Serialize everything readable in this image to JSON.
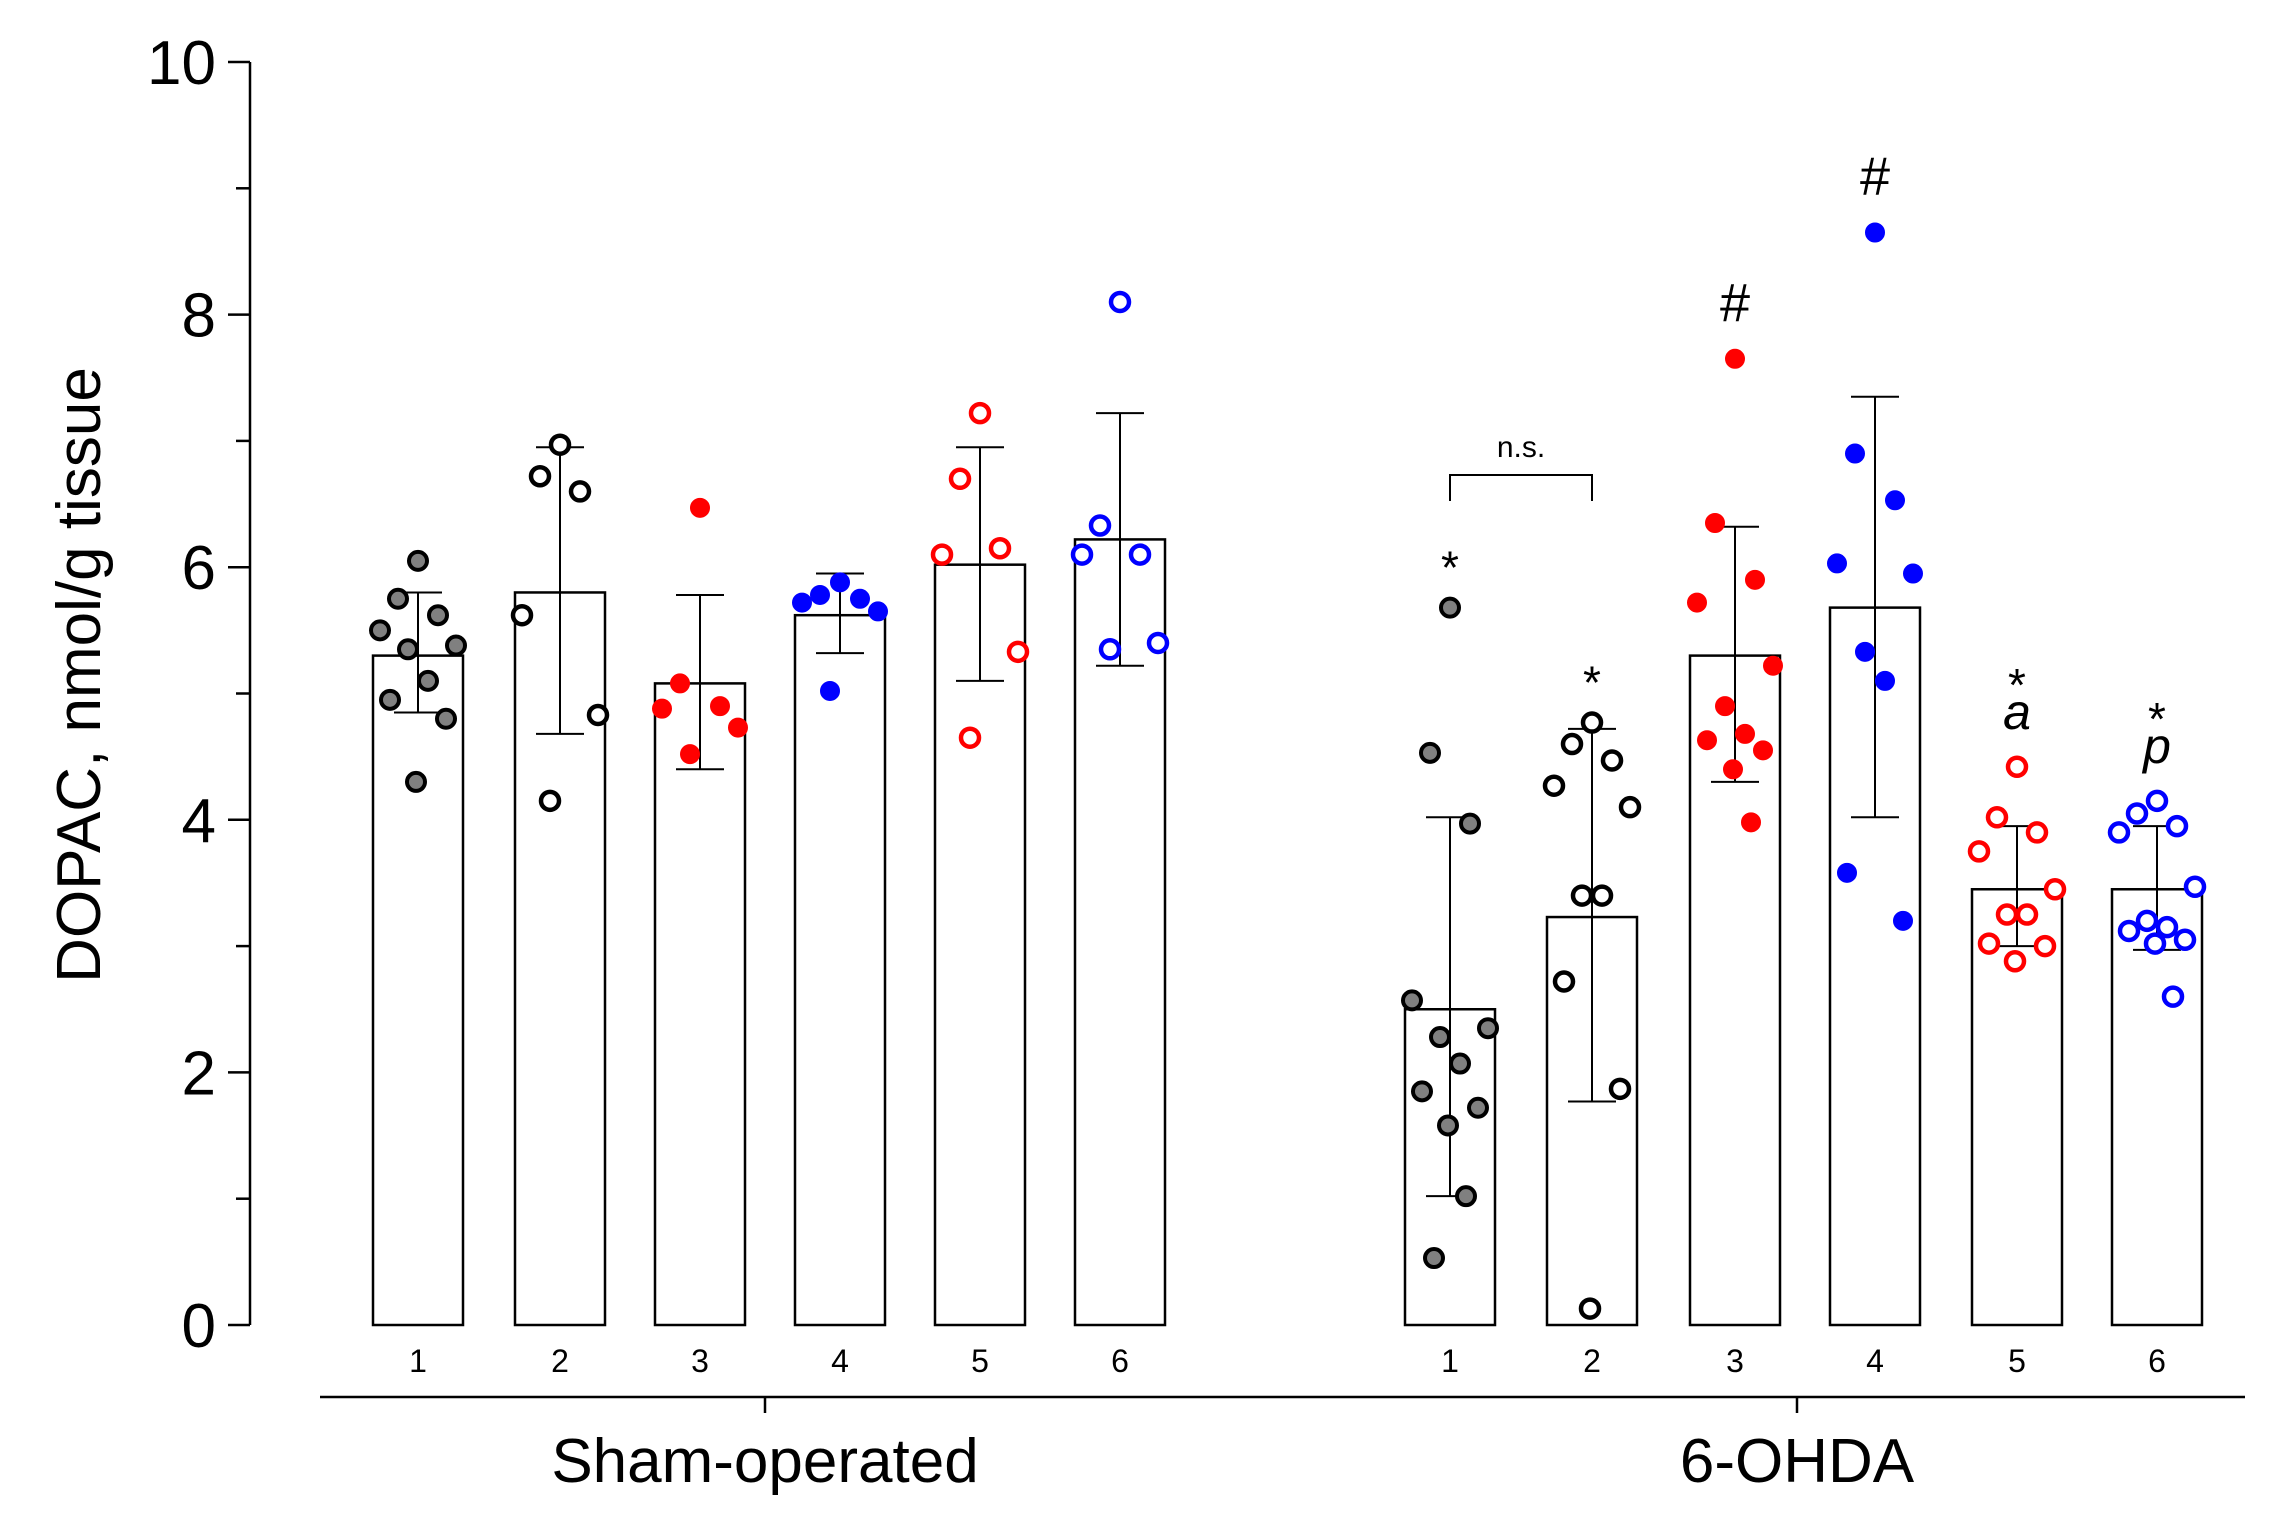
{
  "chart_data": {
    "type": "bar",
    "title": "",
    "ylabel": "DOPAC, nmol/g tissue",
    "xlabel": "",
    "ylim": [
      0,
      10
    ],
    "yticks": [
      "0",
      "2",
      "4",
      "6",
      "8",
      "10"
    ],
    "grid": false,
    "legend": "none",
    "colors": {
      "gray": "#808080",
      "black": "#000000",
      "red": "#ff0000",
      "blue": "#0000ff"
    },
    "groups": [
      {
        "label": "Sham-operated",
        "bars": [
          {
            "category": "1",
            "mean": 5.3,
            "sd": [
              4.85,
              5.8
            ],
            "color": "gray",
            "filled": true,
            "points": [
              6.05,
              5.75,
              5.62,
              5.5,
              5.38,
              5.35,
              5.1,
              4.95,
              4.8,
              4.3
            ],
            "annotations": []
          },
          {
            "category": "2",
            "mean": 5.8,
            "sd": [
              4.68,
              6.95
            ],
            "color": "black",
            "filled": false,
            "points": [
              6.97,
              6.72,
              6.6,
              5.62,
              4.83,
              4.15
            ],
            "annotations": []
          },
          {
            "category": "3",
            "mean": 5.08,
            "sd": [
              4.4,
              5.78
            ],
            "color": "red",
            "filled": true,
            "points": [
              6.47,
              5.08,
              4.9,
              4.88,
              4.73,
              4.52
            ],
            "annotations": []
          },
          {
            "category": "4",
            "mean": 5.62,
            "sd": [
              5.32,
              5.95
            ],
            "color": "blue",
            "filled": true,
            "points": [
              5.88,
              5.78,
              5.75,
              5.72,
              5.65,
              5.02
            ],
            "annotations": []
          },
          {
            "category": "5",
            "mean": 6.02,
            "sd": [
              5.1,
              6.95
            ],
            "color": "red",
            "filled": false,
            "points": [
              7.22,
              6.7,
              6.15,
              6.1,
              5.33,
              4.65
            ],
            "annotations": []
          },
          {
            "category": "6",
            "mean": 6.22,
            "sd": [
              5.22,
              7.22
            ],
            "color": "blue",
            "filled": false,
            "points": [
              8.1,
              6.33,
              6.1,
              6.1,
              5.4,
              5.35
            ],
            "annotations": []
          }
        ]
      },
      {
        "label": "6-OHDA",
        "bars": [
          {
            "category": "1",
            "mean": 2.5,
            "sd": [
              1.02,
              4.02
            ],
            "color": "gray",
            "filled": true,
            "points": [
              5.68,
              4.53,
              3.97,
              2.57,
              2.35,
              2.28,
              2.07,
              1.85,
              1.72,
              1.58,
              1.02,
              0.53
            ],
            "annotations": [
              {
                "text": "*",
                "style": "star"
              }
            ]
          },
          {
            "category": "2",
            "mean": 3.23,
            "sd": [
              1.77,
              4.72
            ],
            "color": "black",
            "filled": false,
            "points": [
              4.77,
              4.6,
              4.47,
              4.27,
              4.1,
              3.4,
              3.4,
              2.72,
              1.87,
              0.13
            ],
            "annotations": [
              {
                "text": "*",
                "style": "star"
              }
            ]
          },
          {
            "category": "3",
            "mean": 5.3,
            "sd": [
              4.3,
              6.32
            ],
            "color": "red",
            "filled": true,
            "points": [
              7.65,
              6.35,
              5.9,
              5.72,
              5.22,
              4.9,
              4.68,
              4.63,
              4.55,
              4.4,
              3.98
            ],
            "annotations": [
              {
                "text": "#",
                "style": "hash"
              }
            ]
          },
          {
            "category": "4",
            "mean": 5.68,
            "sd": [
              4.02,
              7.35
            ],
            "color": "blue",
            "filled": true,
            "points": [
              8.65,
              6.9,
              6.53,
              6.03,
              5.95,
              5.33,
              5.1,
              3.58,
              3.2
            ],
            "annotations": [
              {
                "text": "#",
                "style": "hash"
              }
            ]
          },
          {
            "category": "5",
            "mean": 3.45,
            "sd": [
              3.0,
              3.95
            ],
            "color": "red",
            "filled": false,
            "points": [
              4.42,
              4.02,
              3.9,
              3.75,
              3.45,
              3.25,
              3.25,
              3.02,
              3.0,
              2.88
            ],
            "annotations": [
              {
                "text": "*",
                "style": "star"
              },
              {
                "text": "a",
                "style": "italic"
              }
            ]
          },
          {
            "category": "6",
            "mean": 3.45,
            "sd": [
              2.97,
              3.95
            ],
            "color": "blue",
            "filled": false,
            "points": [
              4.15,
              4.05,
              3.95,
              3.9,
              3.47,
              3.2,
              3.15,
              3.12,
              3.05,
              3.02,
              2.6
            ],
            "annotations": [
              {
                "text": "*",
                "style": "star"
              },
              {
                "text": "p",
                "style": "italic"
              }
            ]
          }
        ]
      }
    ],
    "comparison": {
      "label": "n.s.",
      "from": {
        "group": 1,
        "bar": 0
      },
      "to": {
        "group": 1,
        "bar": 1
      }
    }
  }
}
